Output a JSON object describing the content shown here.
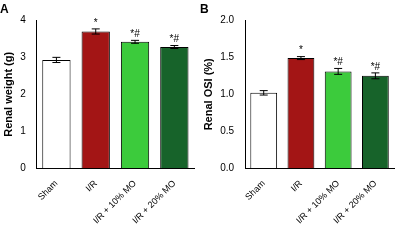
{
  "chart_data": [
    {
      "type": "bar",
      "title": "A",
      "y_label": "Renal weight (g)",
      "categories": [
        "Sham",
        "I/R",
        "I/R + 10% MO",
        "I/R + 20% MO"
      ],
      "values": [
        2.93,
        3.7,
        3.42,
        3.28
      ],
      "errors": [
        0.07,
        0.07,
        0.04,
        0.04
      ],
      "colors": [
        "#ffffff",
        "#a31515",
        "#3ccb3c",
        "#17632a"
      ],
      "annotations": [
        {
          "category": "I/R",
          "text": "*"
        },
        {
          "category": "I/R + 10% MO",
          "text": "*#"
        },
        {
          "category": "I/R + 20% MO",
          "text": "*#"
        }
      ],
      "ylim": [
        0,
        4
      ],
      "yticks": [
        0,
        1,
        2,
        3,
        4
      ],
      "grid": false
    },
    {
      "type": "bar",
      "title": "B",
      "y_label": "Renal OSI (%)",
      "categories": [
        "Sham",
        "I/R",
        "I/R + 10% MO",
        "I/R + 20% MO"
      ],
      "values": [
        1.02,
        1.49,
        1.31,
        1.25
      ],
      "errors": [
        0.03,
        0.02,
        0.04,
        0.04
      ],
      "colors": [
        "#ffffff",
        "#a31515",
        "#3ccb3c",
        "#17632a"
      ],
      "annotations": [
        {
          "category": "I/R",
          "text": "*"
        },
        {
          "category": "I/R + 10% MO",
          "text": "*#"
        },
        {
          "category": "I/R + 20% MO",
          "text": "*#"
        }
      ],
      "ylim": [
        0,
        2
      ],
      "yticks": [
        {
          "value": 0,
          "label": "0.0"
        },
        {
          "value": 0.5,
          "label": "0.5"
        },
        {
          "value": 1,
          "label": "1.0"
        },
        {
          "value": 1.5,
          "label": "1.5"
        },
        {
          "value": 2,
          "label": "2.0"
        }
      ],
      "grid": false
    }
  ]
}
